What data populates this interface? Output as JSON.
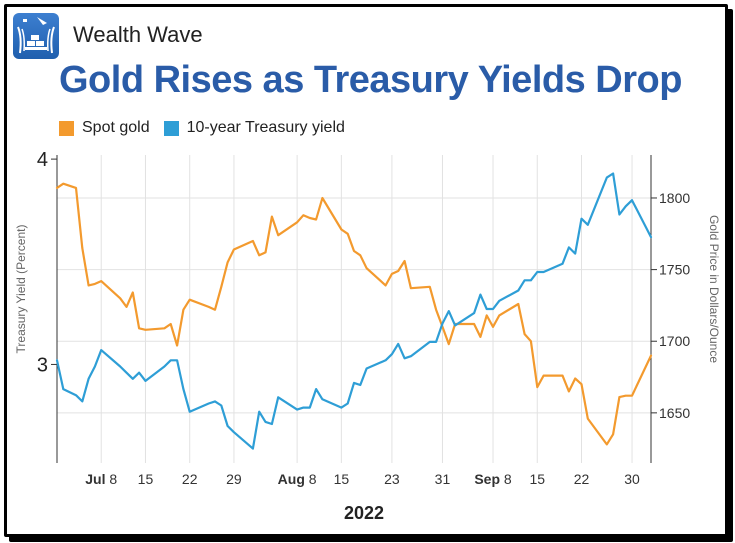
{
  "brand": {
    "name": "Wealth Wave",
    "logo_icon": "gold-bars-logo-icon"
  },
  "chart_data": {
    "type": "line",
    "title": "Gold Rises as Treasury Yields Drop",
    "xlabel": "2022",
    "ylabel_left": "Treasury Yield (Percent)",
    "ylabel_right": "Gold Price in Dollars/Ounce",
    "ylim_left": [
      2.52,
      4.02
    ],
    "ylim_right": [
      1615,
      1830
    ],
    "yticks_left": [
      "3",
      "4"
    ],
    "yticks_right": [
      "1650",
      "1700",
      "1750",
      "1800"
    ],
    "x_range": [
      "2022-07-01",
      "2022-10-03"
    ],
    "x_ticks": [
      {
        "date": "2022-07-08",
        "month": "Jul",
        "day": "8"
      },
      {
        "date": "2022-07-15",
        "month": "",
        "day": "15"
      },
      {
        "date": "2022-07-22",
        "month": "",
        "day": "22"
      },
      {
        "date": "2022-07-29",
        "month": "",
        "day": "29"
      },
      {
        "date": "2022-08-08",
        "month": "Aug",
        "day": "8"
      },
      {
        "date": "2022-08-15",
        "month": "",
        "day": "15"
      },
      {
        "date": "2022-08-23",
        "month": "",
        "day": "23"
      },
      {
        "date": "2022-08-31",
        "month": "",
        "day": "31"
      },
      {
        "date": "2022-09-08",
        "month": "Sep",
        "day": "8"
      },
      {
        "date": "2022-09-15",
        "month": "",
        "day": "15"
      },
      {
        "date": "2022-09-22",
        "month": "",
        "day": "22"
      },
      {
        "date": "2022-09-30",
        "month": "",
        "day": "30"
      }
    ],
    "grid": true,
    "legend_position": "top-left",
    "series": [
      {
        "name": "Spot gold",
        "color": "#f39a2e",
        "axis": "right",
        "x": [
          "2022-07-01",
          "2022-07-02",
          "2022-07-04",
          "2022-07-05",
          "2022-07-06",
          "2022-07-07",
          "2022-07-08",
          "2022-07-11",
          "2022-07-12",
          "2022-07-13",
          "2022-07-14",
          "2022-07-15",
          "2022-07-18",
          "2022-07-19",
          "2022-07-20",
          "2022-07-21",
          "2022-07-22",
          "2022-07-25",
          "2022-07-26",
          "2022-07-27",
          "2022-07-28",
          "2022-07-29",
          "2022-08-01",
          "2022-08-02",
          "2022-08-03",
          "2022-08-04",
          "2022-08-05",
          "2022-08-08",
          "2022-08-09",
          "2022-08-10",
          "2022-08-11",
          "2022-08-12",
          "2022-08-15",
          "2022-08-16",
          "2022-08-17",
          "2022-08-18",
          "2022-08-19",
          "2022-08-22",
          "2022-08-23",
          "2022-08-24",
          "2022-08-25",
          "2022-08-26",
          "2022-08-29",
          "2022-08-30",
          "2022-08-31",
          "2022-09-01",
          "2022-09-02",
          "2022-09-05",
          "2022-09-06",
          "2022-09-07",
          "2022-09-08",
          "2022-09-09",
          "2022-09-12",
          "2022-09-13",
          "2022-09-14",
          "2022-09-15",
          "2022-09-16",
          "2022-09-19",
          "2022-09-20",
          "2022-09-21",
          "2022-09-22",
          "2022-09-23",
          "2022-09-26",
          "2022-09-27",
          "2022-09-28",
          "2022-09-29",
          "2022-09-30",
          "2022-10-03"
        ],
        "values": [
          1807,
          1810,
          1807,
          1765,
          1739,
          1740,
          1742,
          1730,
          1724,
          1734,
          1709,
          1708,
          1709,
          1712,
          1697,
          1722,
          1729,
          1724,
          1722,
          1738,
          1755,
          1764,
          1770,
          1760,
          1762,
          1787,
          1774,
          1783,
          1788,
          1786,
          1785,
          1800,
          1778,
          1775,
          1763,
          1760,
          1751,
          1739,
          1747,
          1749,
          1756,
          1737,
          1738,
          1722,
          1710,
          1698,
          1712,
          1712,
          1703,
          1718,
          1710,
          1718,
          1726,
          1705,
          1700,
          1668,
          1676,
          1676,
          1665,
          1674,
          1670,
          1646,
          1628,
          1635,
          1661,
          1662,
          1662,
          1690
        ]
      },
      {
        "name": "10-year Treasury yield",
        "color": "#2e9ed6",
        "axis": "left",
        "x": [
          "2022-07-01",
          "2022-07-02",
          "2022-07-04",
          "2022-07-05",
          "2022-07-06",
          "2022-07-07",
          "2022-07-08",
          "2022-07-11",
          "2022-07-12",
          "2022-07-13",
          "2022-07-14",
          "2022-07-15",
          "2022-07-18",
          "2022-07-19",
          "2022-07-20",
          "2022-07-21",
          "2022-07-22",
          "2022-07-25",
          "2022-07-26",
          "2022-07-27",
          "2022-07-28",
          "2022-07-29",
          "2022-08-01",
          "2022-08-02",
          "2022-08-03",
          "2022-08-04",
          "2022-08-05",
          "2022-08-08",
          "2022-08-09",
          "2022-08-10",
          "2022-08-11",
          "2022-08-12",
          "2022-08-15",
          "2022-08-16",
          "2022-08-17",
          "2022-08-18",
          "2022-08-19",
          "2022-08-22",
          "2022-08-23",
          "2022-08-24",
          "2022-08-25",
          "2022-08-26",
          "2022-08-29",
          "2022-08-30",
          "2022-08-31",
          "2022-09-01",
          "2022-09-02",
          "2022-09-05",
          "2022-09-06",
          "2022-09-07",
          "2022-09-08",
          "2022-09-09",
          "2022-09-12",
          "2022-09-13",
          "2022-09-14",
          "2022-09-15",
          "2022-09-16",
          "2022-09-19",
          "2022-09-20",
          "2022-09-21",
          "2022-09-22",
          "2022-09-23",
          "2022-09-26",
          "2022-09-27",
          "2022-09-28",
          "2022-09-29",
          "2022-09-30",
          "2022-10-03"
        ],
        "values": [
          3.02,
          2.88,
          2.85,
          2.82,
          2.93,
          2.99,
          3.07,
          2.99,
          2.96,
          2.93,
          2.96,
          2.92,
          2.99,
          3.02,
          3.02,
          2.88,
          2.77,
          2.81,
          2.82,
          2.8,
          2.7,
          2.67,
          2.59,
          2.77,
          2.72,
          2.71,
          2.84,
          2.78,
          2.79,
          2.79,
          2.88,
          2.83,
          2.79,
          2.81,
          2.91,
          2.9,
          2.98,
          3.02,
          3.05,
          3.1,
          3.03,
          3.04,
          3.11,
          3.11,
          3.2,
          3.26,
          3.19,
          3.25,
          3.34,
          3.27,
          3.27,
          3.31,
          3.36,
          3.41,
          3.41,
          3.45,
          3.45,
          3.49,
          3.57,
          3.54,
          3.71,
          3.68,
          3.91,
          3.93,
          3.73,
          3.77,
          3.8,
          3.62
        ]
      }
    ]
  }
}
